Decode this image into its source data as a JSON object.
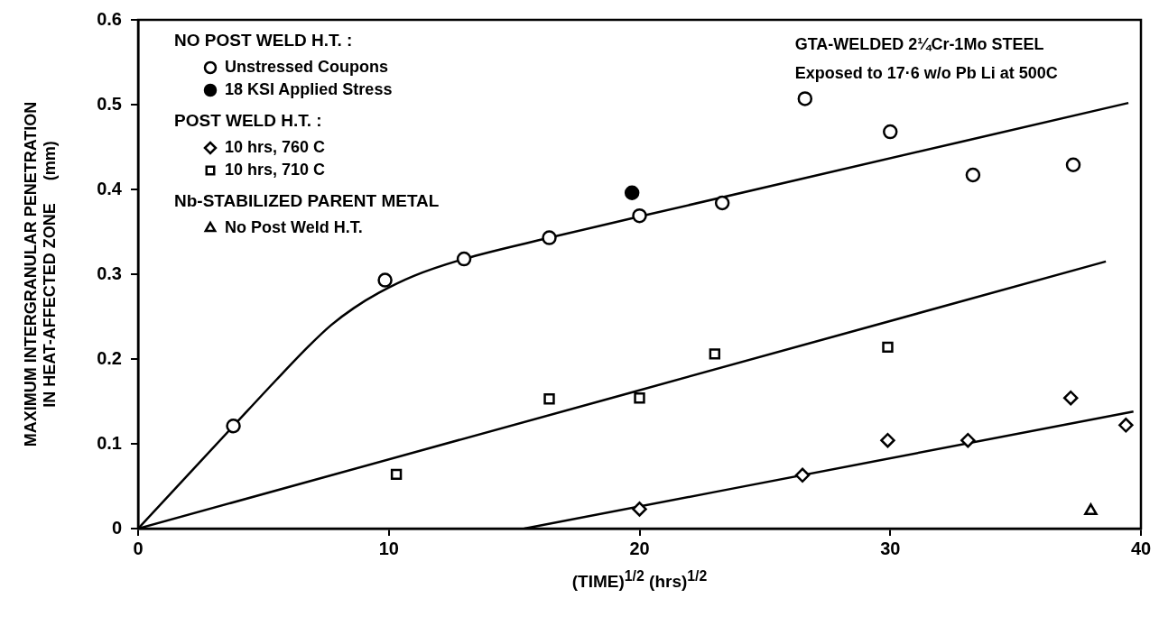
{
  "chart_data": {
    "type": "scatter",
    "title": "GTA-WELDED 2¼Cr-1Mo STEEL",
    "subtitle": "Exposed to 17·6 w/o Pb Li at 500C",
    "xlabel": "(TIME)$^{1/2}$  (hrs)$^{1/2}$",
    "ylabel": "MAXIMUM INTERGRANULAR PENETRATION\nIN HEAT-AFFECTED ZONE     (mm)",
    "annotations": [
      "NO POST WELD H.T. :",
      "POST WELD H.T. :",
      "Nb-STABILIZED PARENT METAL"
    ],
    "xlim": [
      0,
      40
    ],
    "xticks": [
      0,
      10,
      20,
      30,
      40
    ],
    "ylim": [
      0,
      0.6
    ],
    "yticks": [
      0,
      0.1,
      0.2,
      0.3,
      0.4,
      0.5,
      0.6
    ],
    "grid": false,
    "legend": "top left",
    "series": [
      {
        "name": "Unstressed Coupons",
        "marker": "circle",
        "color": "#000000",
        "x": [
          3.8,
          9.85,
          13.0,
          16.4,
          20.0,
          23.3,
          26.6,
          30.0,
          33.3,
          37.3
        ],
        "values": [
          0.121,
          0.293,
          0.318,
          0.343,
          0.369,
          0.384,
          0.507,
          0.468,
          0.417,
          0.429
        ]
      },
      {
        "name": "18 KSI Applied Stress",
        "marker": "circle",
        "color": "#000000",
        "colors": [
          "#000000"
        ],
        "x": [
          19.7
        ],
        "values": [
          0.396
        ]
      },
      {
        "name": "10 hrs, 760 C",
        "marker": "diamond",
        "color": "#000000",
        "x": [
          20.0,
          26.5,
          29.9,
          33.1,
          37.2,
          39.4
        ],
        "values": [
          0.023,
          0.063,
          0.104,
          0.104,
          0.154,
          0.122
        ]
      },
      {
        "name": "10 hrs, 710 C",
        "marker": "square",
        "color": "#000000",
        "x": [
          10.3,
          16.4,
          20.0,
          23.0,
          29.9
        ],
        "values": [
          0.064,
          0.153,
          0.154,
          0.206,
          0.214
        ]
      },
      {
        "name": "No Post Weld H.T.",
        "marker": "triangle",
        "color": "#000000",
        "x": [
          38.0
        ],
        "values": [
          0.021
        ]
      },
      {
        "type": "line",
        "marker": "none",
        "line_style": "solid",
        "color": "#000000",
        "x": [
          0,
          3.8,
          5.5,
          6.8,
          7.7,
          8.6,
          9.6,
          11,
          13,
          16.4,
          20,
          39.5
        ],
        "values": [
          0,
          0.121,
          0.175,
          0.215,
          0.24,
          0.26,
          0.278,
          0.298,
          0.318,
          0.343,
          0.368,
          0.502
        ]
      },
      {
        "type": "line",
        "marker": "none",
        "line_style": "solid",
        "color": "#000000",
        "x": [
          0,
          38.6
        ],
        "values": [
          0,
          0.315
        ]
      },
      {
        "type": "line",
        "marker": "none",
        "line_style": "solid",
        "color": "#000000",
        "x": [
          15.4,
          39.7
        ],
        "values": [
          0,
          0.138
        ]
      }
    ]
  }
}
